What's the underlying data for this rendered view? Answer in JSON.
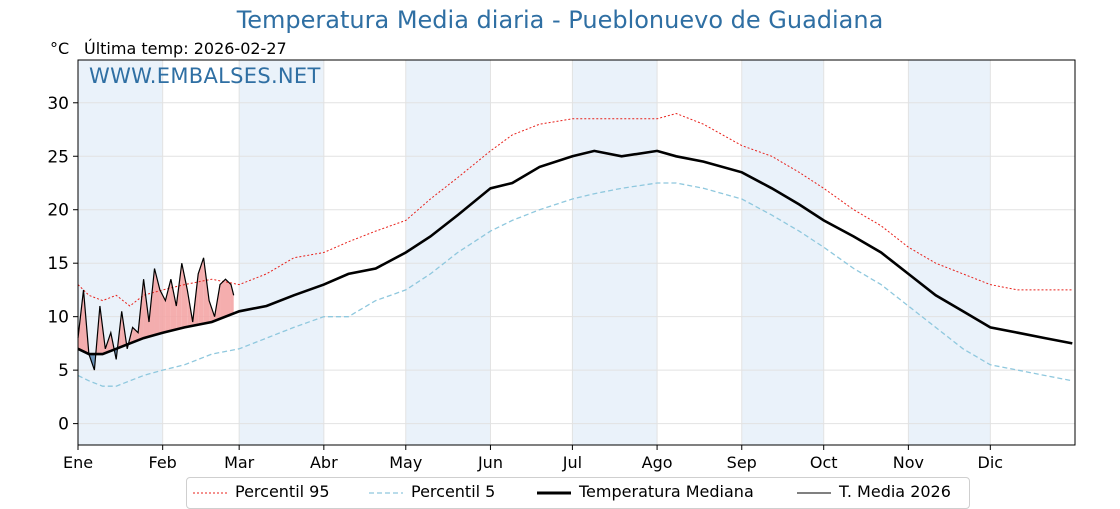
{
  "title": "Temperatura Media diaria - Pueblonuevo de Guadiana",
  "unit_label": "°C",
  "last_temp_label": "Última temp:",
  "last_temp_value": "2026-02-27",
  "watermark": "WWW.EMBALSES.NET",
  "colors": {
    "p95": "#e8211b",
    "p5": "#8fc8de",
    "median": "#000000",
    "current": "#000000",
    "above_fill": "#f4a5a5",
    "below_fill": "#5b89b4",
    "band": "#eaf2fa",
    "title": "#2f6fa3"
  },
  "legend": [
    {
      "label": "Percentil 95",
      "style": "dotted-red"
    },
    {
      "label": "Percentil 5",
      "style": "dashed-lightblue"
    },
    {
      "label": "Temperatura Mediana",
      "style": "thick-black"
    },
    {
      "label": "T. Media 2026",
      "style": "thin-black"
    }
  ],
  "chart_data": {
    "type": "line",
    "xlabel": "",
    "ylabel": "°C",
    "ylim": [
      -2,
      34
    ],
    "yticks": [
      0,
      5,
      10,
      15,
      20,
      25,
      30
    ],
    "xlim": [
      1,
      366
    ],
    "months": [
      {
        "label": "Ene",
        "day": 1
      },
      {
        "label": "Feb",
        "day": 32
      },
      {
        "label": "Mar",
        "day": 60
      },
      {
        "label": "Abr",
        "day": 91
      },
      {
        "label": "May",
        "day": 121
      },
      {
        "label": "Jun",
        "day": 152
      },
      {
        "label": "Jul",
        "day": 182
      },
      {
        "label": "Ago",
        "day": 213
      },
      {
        "label": "Sep",
        "day": 244
      },
      {
        "label": "Oct",
        "day": 274
      },
      {
        "label": "Nov",
        "day": 305
      },
      {
        "label": "Dic",
        "day": 335
      }
    ],
    "grid": true,
    "legend_position": "bottom",
    "series": [
      {
        "name": "Percentil 95",
        "x": [
          1,
          5,
          10,
          15,
          20,
          25,
          32,
          40,
          50,
          60,
          70,
          80,
          91,
          100,
          110,
          121,
          130,
          140,
          152,
          160,
          170,
          182,
          190,
          200,
          213,
          220,
          230,
          244,
          255,
          265,
          274,
          285,
          295,
          305,
          315,
          325,
          335,
          345,
          355,
          365
        ],
        "values": [
          13,
          12,
          11.5,
          12,
          11,
          12,
          12.5,
          13,
          13.5,
          13,
          14,
          15.5,
          16,
          17,
          18,
          19,
          21,
          23,
          25.5,
          27,
          28,
          28.5,
          28.5,
          28.5,
          28.5,
          29,
          28,
          26,
          25,
          23.5,
          22,
          20,
          18.5,
          16.5,
          15,
          14,
          13,
          12.5,
          12.5,
          12.5
        ]
      },
      {
        "name": "Percentil 5",
        "x": [
          1,
          5,
          10,
          15,
          20,
          25,
          32,
          40,
          50,
          60,
          70,
          80,
          91,
          100,
          110,
          121,
          130,
          140,
          152,
          160,
          170,
          182,
          190,
          200,
          213,
          220,
          230,
          244,
          255,
          265,
          274,
          285,
          295,
          305,
          315,
          325,
          335,
          345,
          355,
          365
        ],
        "values": [
          4.5,
          4,
          3.5,
          3.5,
          4,
          4.5,
          5,
          5.5,
          6.5,
          7,
          8,
          9,
          10,
          10,
          11.5,
          12.5,
          14,
          16,
          18,
          19,
          20,
          21,
          21.5,
          22,
          22.5,
          22.5,
          22,
          21,
          19.5,
          18,
          16.5,
          14.5,
          13,
          11,
          9,
          7,
          5.5,
          5,
          4.5,
          4
        ]
      },
      {
        "name": "Temperatura Mediana",
        "x": [
          1,
          5,
          10,
          15,
          20,
          25,
          32,
          40,
          50,
          60,
          70,
          80,
          91,
          100,
          110,
          121,
          130,
          140,
          152,
          160,
          170,
          182,
          190,
          200,
          213,
          220,
          230,
          244,
          255,
          265,
          274,
          285,
          295,
          305,
          315,
          325,
          335,
          345,
          355,
          365
        ],
        "values": [
          7,
          6.5,
          6.5,
          7,
          7.5,
          8,
          8.5,
          9,
          9.5,
          10.5,
          11,
          12,
          13,
          14,
          14.5,
          16,
          17.5,
          19.5,
          22,
          22.5,
          24,
          25,
          25.5,
          25,
          25.5,
          25,
          24.5,
          23.5,
          22,
          20.5,
          19,
          17.5,
          16,
          14,
          12,
          10.5,
          9,
          8.5,
          8,
          7.5
        ]
      },
      {
        "name": "T. Media 2026",
        "x": [
          1,
          3,
          5,
          7,
          9,
          11,
          13,
          15,
          17,
          19,
          21,
          23,
          25,
          27,
          29,
          31,
          33,
          35,
          37,
          39,
          41,
          43,
          45,
          47,
          49,
          51,
          53,
          55,
          57,
          58
        ],
        "values": [
          8,
          12.5,
          6.5,
          5,
          11,
          7,
          8.5,
          6,
          10.5,
          7,
          9,
          8.5,
          13.5,
          9.5,
          14.5,
          12.5,
          11.5,
          13.5,
          11,
          15,
          12.5,
          9.5,
          14,
          15.5,
          11.5,
          10,
          13,
          13.5,
          13,
          12
        ]
      }
    ]
  }
}
